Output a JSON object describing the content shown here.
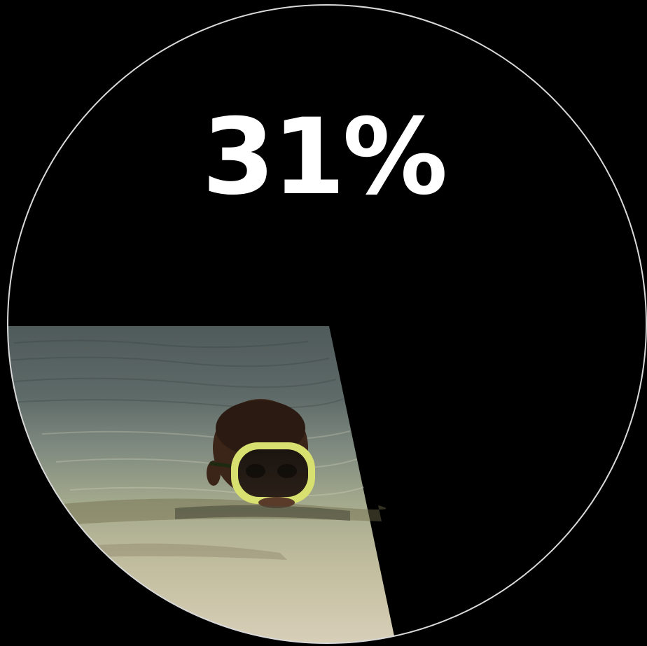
{
  "stat": {
    "label": "31%"
  },
  "colors": {
    "background": "#000000",
    "circle_outline": "#d9d9d9",
    "text": "#ffffff",
    "water_deep": "#4f5a5a",
    "water_mid": "#7f8a80",
    "water_shallow": "#b8b69a",
    "sand": "#d8cfb8",
    "skin": "#3b2418",
    "mask_frame": "#d8e070"
  },
  "photo": {
    "subject": "child-snorkeling-icon"
  }
}
